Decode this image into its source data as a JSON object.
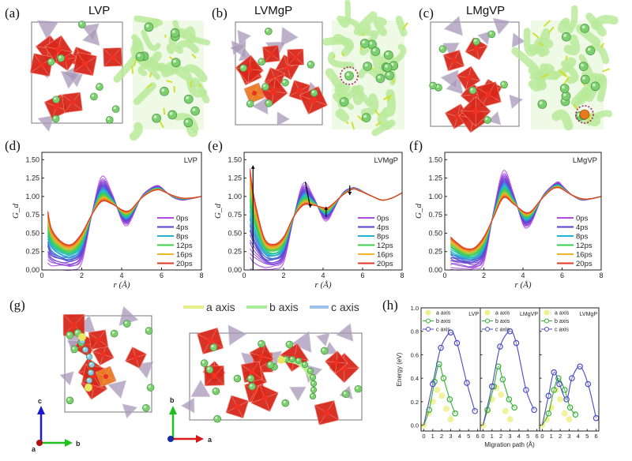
{
  "panels": {
    "a": {
      "label": "(a)",
      "title": "LVP"
    },
    "b": {
      "label": "(b)",
      "title": "LVMgP"
    },
    "c": {
      "label": "(c)",
      "title": "LMgVP"
    },
    "d": {
      "label": "(d)"
    },
    "e": {
      "label": "(e)"
    },
    "f": {
      "label": "(f)"
    },
    "g": {
      "label": "(g)",
      "legend": [
        {
          "name": "a axis",
          "color": "#e6ee8a"
        },
        {
          "name": "b axis",
          "color": "#a8ec98"
        },
        {
          "name": "c axis",
          "color": "#9cc4ee"
        }
      ],
      "axes_left": {
        "up": "c",
        "right": "b",
        "out": "a"
      },
      "axes_right": {
        "up": "b",
        "right": "a"
      }
    },
    "h": {
      "label": "(h)"
    }
  },
  "colors": {
    "octahedron": "#d8281c",
    "tetrahedron": "#a898b8",
    "li": "#7ccf6e",
    "mg": "#e87a1e",
    "network": "#b8ea9a"
  },
  "chart_data": [
    {
      "id": "d",
      "type": "line",
      "inset_title": "LVP",
      "xlabel": "r (Å)",
      "ylabel": "G_d",
      "xlim": [
        0,
        8
      ],
      "ylim": [
        0,
        1.6
      ],
      "xticks": [
        "0",
        "2",
        "4",
        "6",
        "8"
      ],
      "yticks": [
        "0.00",
        "0.25",
        "0.50",
        "0.75",
        "1.00",
        "1.25",
        "1.50"
      ],
      "legend": [
        "0ps",
        "4ps",
        "8ps",
        "12ps",
        "16ps",
        "20ps"
      ],
      "legend_colors": [
        "#b04ae0",
        "#5a3fd0",
        "#22b4d4",
        "#38d048",
        "#f0b428",
        "#e03a22"
      ],
      "legend_placement": "bottom-right",
      "r": [
        0.3,
        0.5,
        1,
        1.5,
        2,
        2.5,
        3,
        3.5,
        4,
        4.25,
        4.5,
        5,
        5.5,
        5.8,
        6,
        6.5,
        7,
        7.5,
        8
      ],
      "series": [
        {
          "name": "0ps",
          "values": [
            0,
            0,
            0,
            0,
            0.1,
            0.75,
            1.27,
            1.05,
            0.68,
            0.6,
            0.7,
            1.0,
            1.12,
            1.15,
            1.12,
            1.0,
            0.95,
            0.97,
            1.0
          ]
        },
        {
          "name": "20ps",
          "values": [
            0.8,
            0.55,
            0.38,
            0.35,
            0.5,
            0.75,
            0.93,
            0.9,
            0.82,
            0.8,
            0.83,
            0.98,
            1.07,
            1.09,
            1.08,
            1.02,
            0.98,
            0.98,
            1.0
          ]
        }
      ]
    },
    {
      "id": "e",
      "type": "line",
      "inset_title": "LVMgP",
      "xlabel": "r (Å)",
      "ylabel": "G_d",
      "xlim": [
        0,
        8
      ],
      "ylim": [
        0,
        1.6
      ],
      "xticks": [
        "0",
        "2",
        "4",
        "6",
        "8"
      ],
      "yticks": [
        "0.00",
        "0.25",
        "0.50",
        "0.75",
        "1.00",
        "1.25",
        "1.50"
      ],
      "legend": [
        "0ps",
        "4ps",
        "8ps",
        "12ps",
        "16ps",
        "20ps"
      ],
      "legend_colors": [
        "#b04ae0",
        "#5a3fd0",
        "#22b4d4",
        "#38d048",
        "#f0b428",
        "#e03a22"
      ],
      "legend_placement": "bottom-right",
      "arrows": true,
      "r": [
        0.3,
        0.5,
        1,
        1.5,
        2,
        2.5,
        3,
        3.5,
        4,
        4.25,
        4.5,
        5,
        5.5,
        5.8,
        6,
        6.5,
        7,
        7.5,
        8
      ],
      "series": [
        {
          "name": "0ps",
          "values": [
            0,
            0,
            0,
            0,
            0.1,
            0.7,
            1.18,
            1.0,
            0.7,
            0.68,
            0.8,
            1.05,
            1.12,
            1.1,
            1.07,
            1.0,
            0.95,
            0.98,
            1.05
          ]
        },
        {
          "name": "20ps",
          "values": [
            1.38,
            1.0,
            0.45,
            0.35,
            0.45,
            0.72,
            0.88,
            0.88,
            0.85,
            0.85,
            0.9,
            1.02,
            1.1,
            1.08,
            1.06,
            1.0,
            0.95,
            0.98,
            1.05
          ]
        }
      ]
    },
    {
      "id": "f",
      "type": "line",
      "inset_title": "LMgVP",
      "xlabel": "r (Å)",
      "ylabel": "G_d",
      "xlim": [
        0,
        8
      ],
      "ylim": [
        0,
        1.6
      ],
      "xticks": [
        "0",
        "2",
        "4",
        "6",
        "8"
      ],
      "yticks": [
        "0.00",
        "0.25",
        "0.50",
        "0.75",
        "1.00",
        "1.25",
        "1.50"
      ],
      "legend": [
        "0ps",
        "4ps",
        "8ps",
        "12ps",
        "16ps",
        "20ps"
      ],
      "legend_colors": [
        "#b04ae0",
        "#5a3fd0",
        "#22b4d4",
        "#38d048",
        "#f0b428",
        "#e03a22"
      ],
      "legend_placement": "bottom-right",
      "r": [
        0.3,
        0.5,
        1,
        1.5,
        2,
        2.5,
        3,
        3.5,
        4,
        4.25,
        4.5,
        5,
        5.5,
        5.8,
        6,
        6.5,
        7,
        7.5,
        8
      ],
      "series": [
        {
          "name": "0ps",
          "values": [
            0,
            0,
            0,
            0,
            0.1,
            0.8,
            1.35,
            1.05,
            0.62,
            0.58,
            0.68,
            1.0,
            1.15,
            1.2,
            1.15,
            1.02,
            0.95,
            0.97,
            1.0
          ]
        },
        {
          "name": "20ps",
          "values": [
            0.45,
            0.4,
            0.3,
            0.3,
            0.45,
            0.72,
            0.98,
            0.9,
            0.8,
            0.78,
            0.82,
            0.98,
            1.1,
            1.12,
            1.1,
            1.02,
            0.97,
            0.97,
            1.0
          ]
        }
      ]
    },
    {
      "id": "h",
      "type": "line+scatter",
      "xlabel": "Migration path (Å)",
      "ylabel": "Energy (eV)",
      "xlim": [
        -0.3,
        6.3
      ],
      "ylim": [
        -0.05,
        1.0
      ],
      "xticks": [
        "0",
        "1",
        "2",
        "3",
        "4",
        "5",
        "6"
      ],
      "yticks": [
        "0.0",
        "0.2",
        "0.4",
        "0.6",
        "0.8",
        "1.0"
      ],
      "legend_placement": "top-left",
      "series_colors": {
        "a axis": "#eef08a",
        "b axis": "#34b034",
        "c axis": "#4a4ac4"
      },
      "subplots": [
        {
          "inset_title": "LVP",
          "series": [
            {
              "name": "a axis",
              "x": [
                0,
                0.5,
                1.0,
                1.5,
                2.0,
                2.5,
                3.0
              ],
              "y": [
                0,
                0.1,
                0.2,
                0.3,
                0.25,
                0.14,
                0.05
              ]
            },
            {
              "name": "b axis",
              "x": [
                0,
                0.6,
                1.2,
                1.7,
                2.2,
                2.9,
                3.5
              ],
              "y": [
                0,
                0.13,
                0.37,
                0.52,
                0.4,
                0.22,
                0.1
              ]
            },
            {
              "name": "c axis",
              "x": [
                0,
                1.0,
                1.9,
                3.0,
                3.7,
                4.8,
                5.7
              ],
              "y": [
                0,
                0.35,
                0.66,
                0.79,
                0.7,
                0.36,
                0.12
              ]
            }
          ]
        },
        {
          "inset_title": "LMgVP",
          "series": [
            {
              "name": "a axis",
              "x": [
                0,
                0.5,
                1.0,
                1.5,
                2.0,
                2.5,
                3.0
              ],
              "y": [
                0,
                0.12,
                0.22,
                0.32,
                0.26,
                0.12,
                0.05
              ]
            },
            {
              "name": "b axis",
              "x": [
                0,
                0.5,
                1.2,
                1.7,
                2.2,
                2.9,
                3.5
              ],
              "y": [
                0,
                0.13,
                0.33,
                0.5,
                0.39,
                0.22,
                0.15
              ]
            },
            {
              "name": "c axis",
              "x": [
                0,
                1.0,
                1.9,
                3.0,
                3.7,
                4.8,
                5.7
              ],
              "y": [
                0,
                0.33,
                0.67,
                0.8,
                0.7,
                0.3,
                0.13
              ]
            }
          ]
        },
        {
          "inset_title": "LVMgP",
          "series": [
            {
              "name": "a axis",
              "x": [
                0,
                0.5,
                1.0,
                1.5,
                2.0,
                2.5,
                3.0
              ],
              "y": [
                0,
                0.05,
                0.15,
                0.3,
                0.22,
                0.1,
                0.05
              ]
            },
            {
              "name": "b axis",
              "x": [
                0,
                0.7,
                1.3,
                1.8,
                2.5,
                3.1,
                3.7
              ],
              "y": [
                0,
                0.1,
                0.3,
                0.4,
                0.3,
                0.15,
                0.09
              ]
            },
            {
              "name": "c axis",
              "x": [
                0,
                0.7,
                1.3,
                1.9,
                2.7,
                3.3,
                4.2,
                5.1,
                6.0
              ],
              "y": [
                0,
                0.25,
                0.45,
                0.35,
                0.22,
                0.4,
                0.5,
                0.35,
                0.06
              ]
            }
          ]
        }
      ]
    }
  ]
}
